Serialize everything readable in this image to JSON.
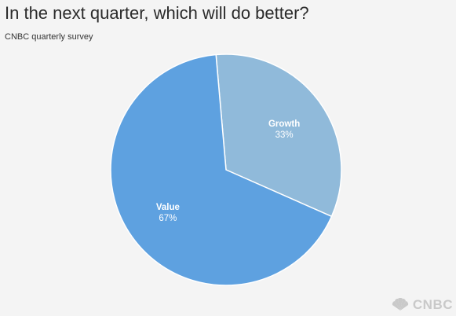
{
  "chart_data": {
    "type": "pie",
    "title": "In the next quarter, which will do better?",
    "subtitle": "CNBC quarterly survey",
    "slices": [
      {
        "label": "Growth",
        "value": 33,
        "value_label": "33%",
        "color": "#90bada"
      },
      {
        "label": "Value",
        "value": 67,
        "value_label": "67%",
        "color": "#5ea1e0"
      }
    ],
    "start_angle_deg": -5,
    "direction": "clockwise",
    "legend": "none"
  },
  "branding": {
    "logo_text": "CNBC",
    "logo_color": "#c9c9c9",
    "logo_icon": "peacock-icon"
  }
}
